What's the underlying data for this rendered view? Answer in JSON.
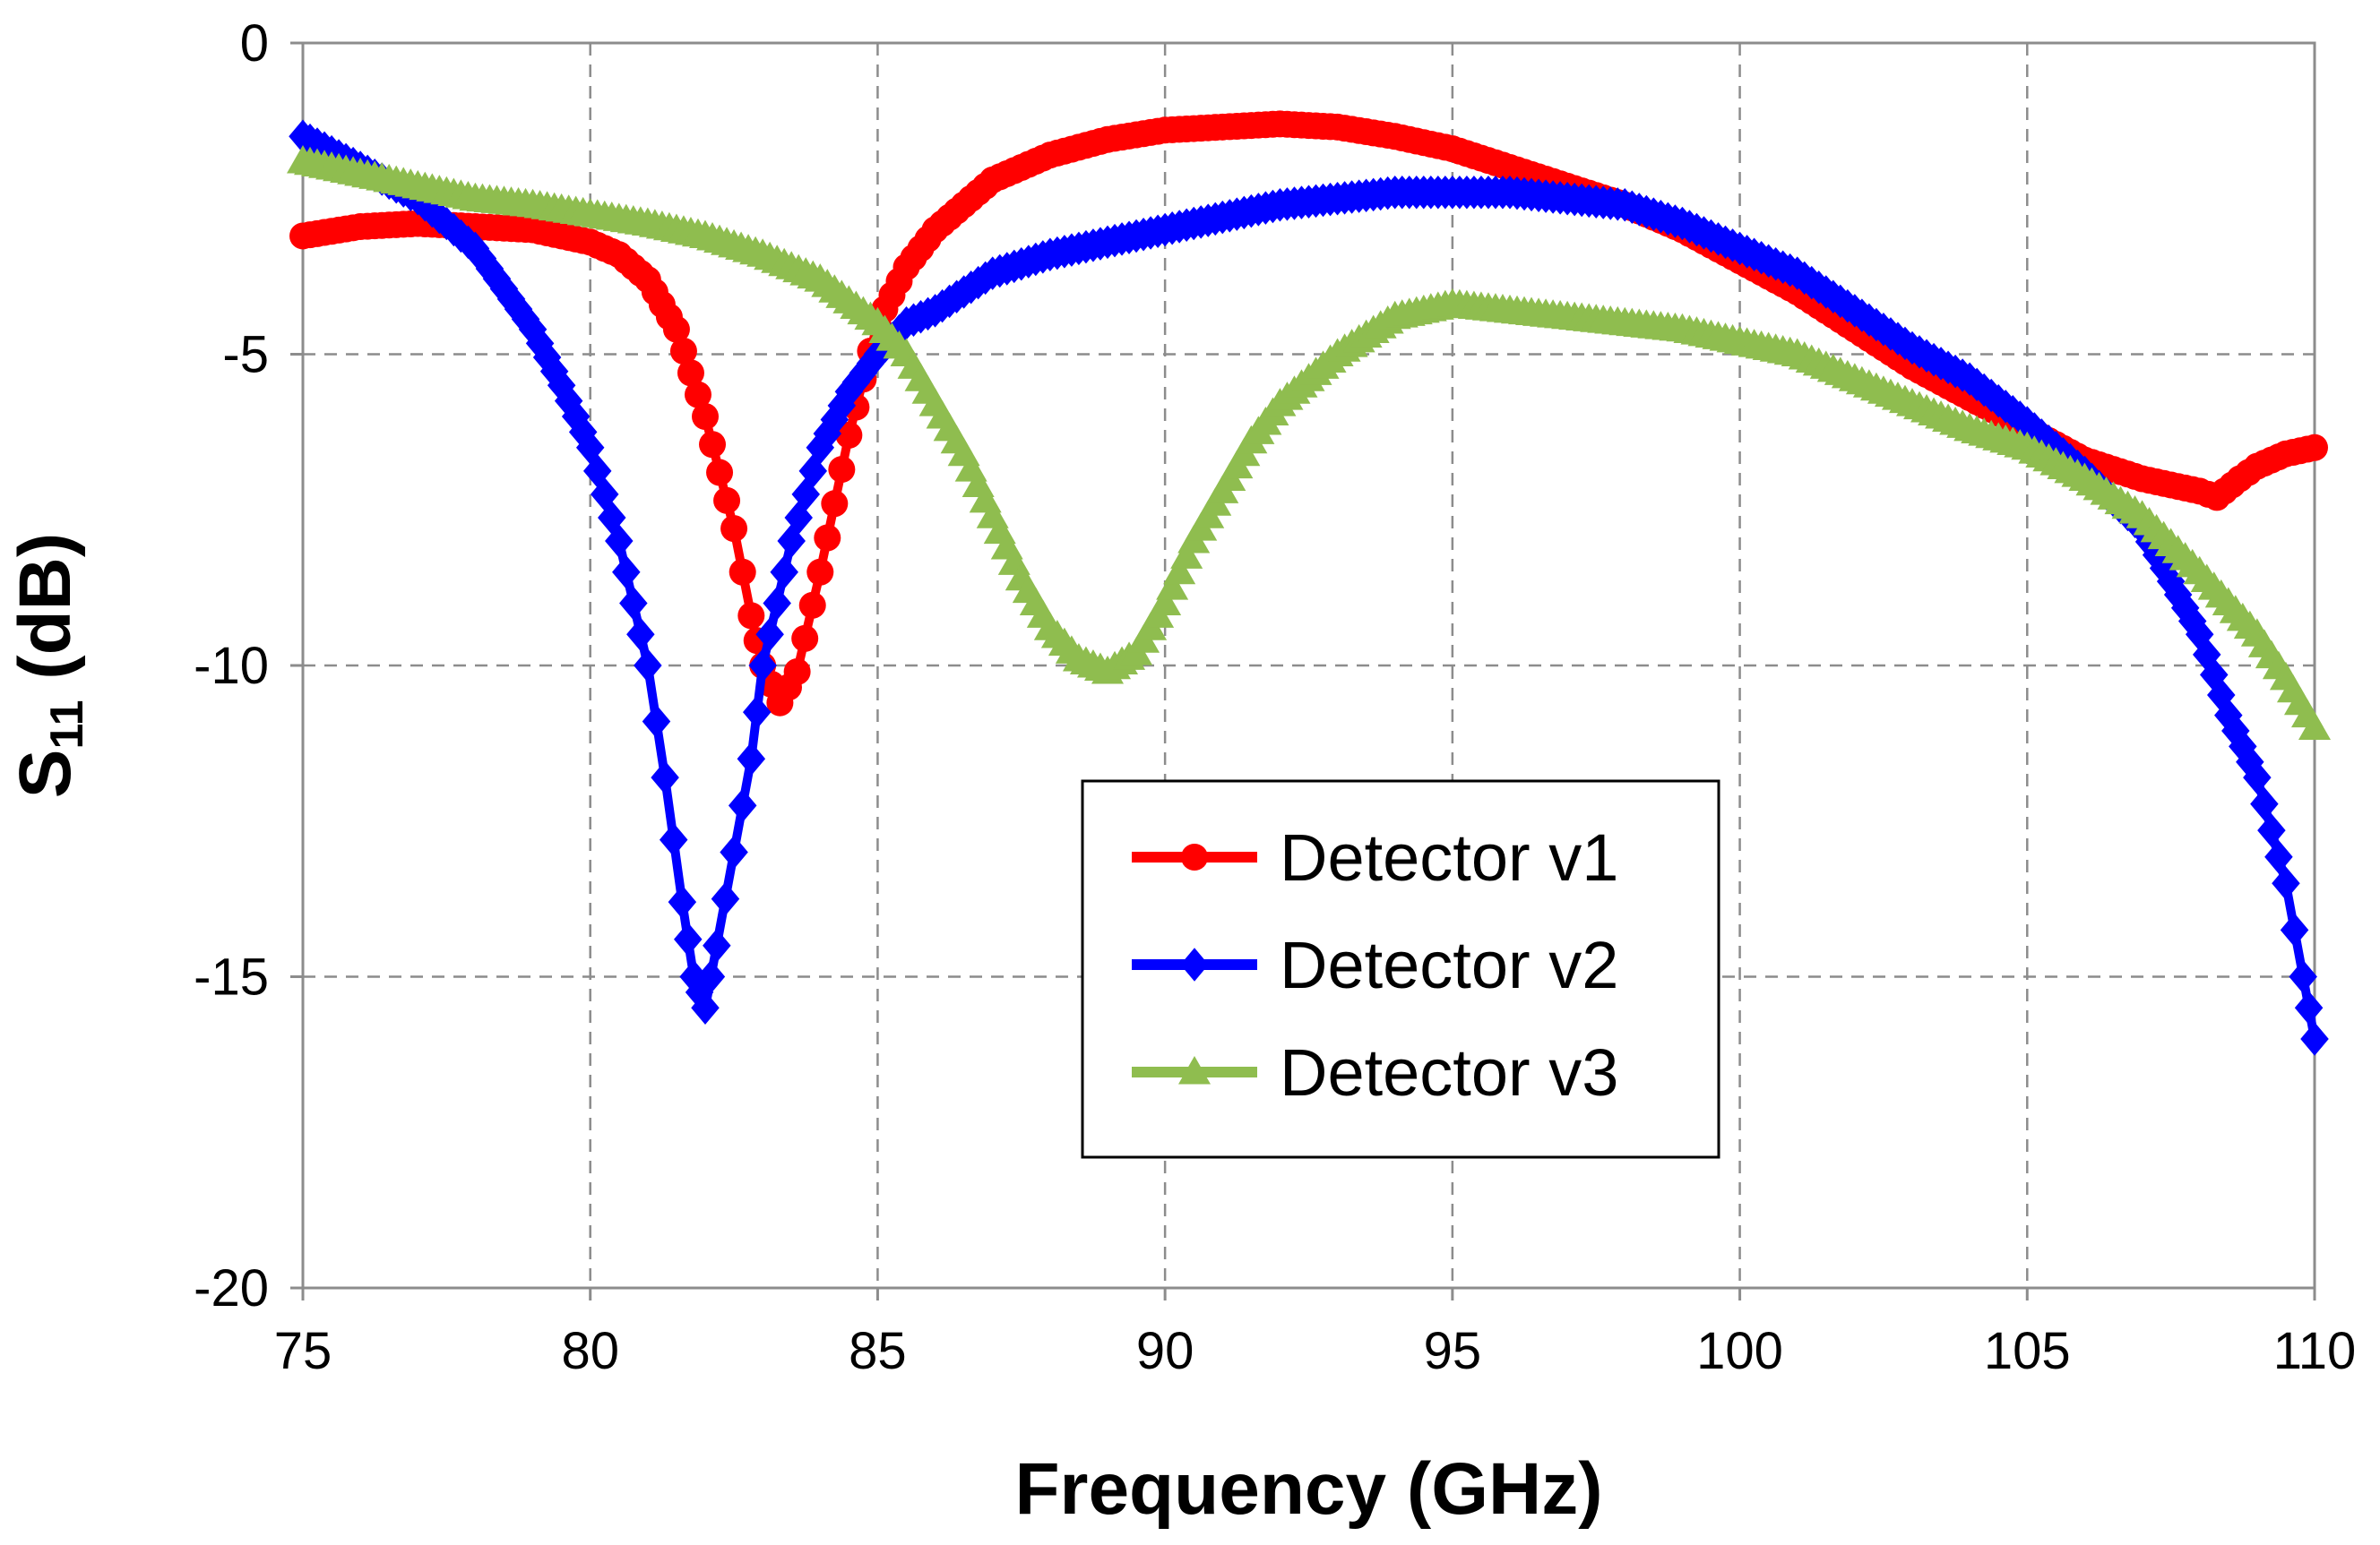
{
  "chart_data": {
    "type": "line",
    "title": "",
    "xlabel": "Frequency (GHz)",
    "ylabel_main": "S",
    "ylabel_sub": "11",
    "ylabel_unit": " (dB)",
    "xlim": [
      75,
      110
    ],
    "ylim": [
      -20,
      0
    ],
    "xticks": [
      75,
      80,
      85,
      90,
      95,
      100,
      105,
      110
    ],
    "yticks": [
      0,
      -5,
      -10,
      -15,
      -20
    ],
    "xtick_labels": [
      "75",
      "80",
      "85",
      "90",
      "95",
      "100",
      "105",
      "110"
    ],
    "ytick_labels": [
      "0",
      "-5",
      "-10",
      "-15",
      "-20"
    ],
    "grid": true,
    "legend_position": "center-right",
    "series": [
      {
        "name": "Detector v1",
        "color": "#ff0000",
        "marker": "circle",
        "points": [
          [
            75.0,
            -3.1
          ],
          [
            76.0,
            -2.95
          ],
          [
            77.0,
            -2.9
          ],
          [
            78.0,
            -2.95
          ],
          [
            79.0,
            -3.0
          ],
          [
            80.0,
            -3.2
          ],
          [
            80.5,
            -3.4
          ],
          [
            81.0,
            -3.8
          ],
          [
            81.5,
            -4.6
          ],
          [
            82.0,
            -6.0
          ],
          [
            82.5,
            -7.8
          ],
          [
            82.8,
            -9.2
          ],
          [
            83.0,
            -10.0
          ],
          [
            83.3,
            -10.6
          ],
          [
            83.6,
            -10.1
          ],
          [
            84.0,
            -8.5
          ],
          [
            84.5,
            -6.3
          ],
          [
            85.0,
            -4.5
          ],
          [
            85.5,
            -3.6
          ],
          [
            86.0,
            -3.0
          ],
          [
            87.0,
            -2.2
          ],
          [
            88.0,
            -1.8
          ],
          [
            89.0,
            -1.55
          ],
          [
            90.0,
            -1.4
          ],
          [
            91.0,
            -1.35
          ],
          [
            92.0,
            -1.3
          ],
          [
            93.0,
            -1.35
          ],
          [
            94.0,
            -1.5
          ],
          [
            95.0,
            -1.7
          ],
          [
            96.0,
            -2.0
          ],
          [
            97.0,
            -2.3
          ],
          [
            98.0,
            -2.6
          ],
          [
            99.0,
            -3.0
          ],
          [
            100.0,
            -3.5
          ],
          [
            101.0,
            -4.0
          ],
          [
            102.0,
            -4.6
          ],
          [
            103.0,
            -5.2
          ],
          [
            104.0,
            -5.7
          ],
          [
            105.0,
            -6.2
          ],
          [
            106.0,
            -6.7
          ],
          [
            107.0,
            -7.0
          ],
          [
            108.0,
            -7.2
          ],
          [
            108.3,
            -7.3
          ],
          [
            108.7,
            -7.0
          ],
          [
            109.0,
            -6.8
          ],
          [
            109.5,
            -6.6
          ],
          [
            110.0,
            -6.5
          ]
        ]
      },
      {
        "name": "Detector v2",
        "color": "#0000ff",
        "marker": "diamond",
        "points": [
          [
            75.0,
            -1.5
          ],
          [
            76.0,
            -2.0
          ],
          [
            77.0,
            -2.5
          ],
          [
            78.0,
            -3.3
          ],
          [
            79.0,
            -4.6
          ],
          [
            79.5,
            -5.5
          ],
          [
            80.0,
            -6.5
          ],
          [
            80.5,
            -8.0
          ],
          [
            81.0,
            -10.0
          ],
          [
            81.3,
            -11.8
          ],
          [
            81.6,
            -13.8
          ],
          [
            81.8,
            -15.0
          ],
          [
            82.0,
            -15.5
          ],
          [
            82.2,
            -14.5
          ],
          [
            82.5,
            -13.0
          ],
          [
            82.8,
            -11.5
          ],
          [
            83.0,
            -10.0
          ],
          [
            83.5,
            -8.0
          ],
          [
            84.0,
            -6.5
          ],
          [
            84.5,
            -5.6
          ],
          [
            85.0,
            -5.0
          ],
          [
            85.5,
            -4.5
          ],
          [
            86.0,
            -4.3
          ],
          [
            87.0,
            -3.7
          ],
          [
            88.0,
            -3.4
          ],
          [
            89.0,
            -3.2
          ],
          [
            90.0,
            -3.0
          ],
          [
            91.0,
            -2.8
          ],
          [
            92.0,
            -2.6
          ],
          [
            93.0,
            -2.5
          ],
          [
            94.0,
            -2.4
          ],
          [
            95.0,
            -2.4
          ],
          [
            96.0,
            -2.4
          ],
          [
            97.0,
            -2.5
          ],
          [
            98.0,
            -2.6
          ],
          [
            99.0,
            -2.9
          ],
          [
            100.0,
            -3.3
          ],
          [
            101.0,
            -3.7
          ],
          [
            102.0,
            -4.3
          ],
          [
            103.0,
            -4.9
          ],
          [
            104.0,
            -5.4
          ],
          [
            105.0,
            -6.1
          ],
          [
            106.0,
            -6.9
          ],
          [
            107.0,
            -7.8
          ],
          [
            108.0,
            -9.5
          ],
          [
            108.5,
            -10.8
          ],
          [
            109.0,
            -11.8
          ],
          [
            109.5,
            -13.5
          ],
          [
            109.8,
            -15.0
          ],
          [
            110.0,
            -16.0
          ]
        ]
      },
      {
        "name": "Detector v3",
        "color": "#8fbd4f",
        "marker": "triangle",
        "points": [
          [
            75.0,
            -1.9
          ],
          [
            76.0,
            -2.1
          ],
          [
            77.0,
            -2.3
          ],
          [
            78.0,
            -2.5
          ],
          [
            79.0,
            -2.6
          ],
          [
            80.0,
            -2.75
          ],
          [
            81.0,
            -2.9
          ],
          [
            82.0,
            -3.1
          ],
          [
            83.0,
            -3.4
          ],
          [
            84.0,
            -3.8
          ],
          [
            85.0,
            -4.5
          ],
          [
            85.5,
            -5.0
          ],
          [
            86.0,
            -5.8
          ],
          [
            86.5,
            -6.6
          ],
          [
            87.0,
            -7.6
          ],
          [
            87.5,
            -8.6
          ],
          [
            88.0,
            -9.4
          ],
          [
            88.5,
            -9.9
          ],
          [
            89.0,
            -10.1
          ],
          [
            89.5,
            -9.8
          ],
          [
            90.0,
            -9.0
          ],
          [
            90.5,
            -8.0
          ],
          [
            91.0,
            -7.2
          ],
          [
            91.5,
            -6.4
          ],
          [
            92.0,
            -5.8
          ],
          [
            93.0,
            -5.0
          ],
          [
            94.0,
            -4.4
          ],
          [
            95.0,
            -4.2
          ],
          [
            96.0,
            -4.3
          ],
          [
            97.0,
            -4.4
          ],
          [
            98.0,
            -4.5
          ],
          [
            99.0,
            -4.6
          ],
          [
            100.0,
            -4.8
          ],
          [
            101.0,
            -5.0
          ],
          [
            102.0,
            -5.4
          ],
          [
            103.0,
            -5.8
          ],
          [
            104.0,
            -6.2
          ],
          [
            105.0,
            -6.5
          ],
          [
            106.0,
            -7.0
          ],
          [
            107.0,
            -7.6
          ],
          [
            108.0,
            -8.5
          ],
          [
            109.0,
            -9.5
          ],
          [
            109.5,
            -10.2
          ],
          [
            110.0,
            -11.0
          ]
        ]
      }
    ]
  }
}
